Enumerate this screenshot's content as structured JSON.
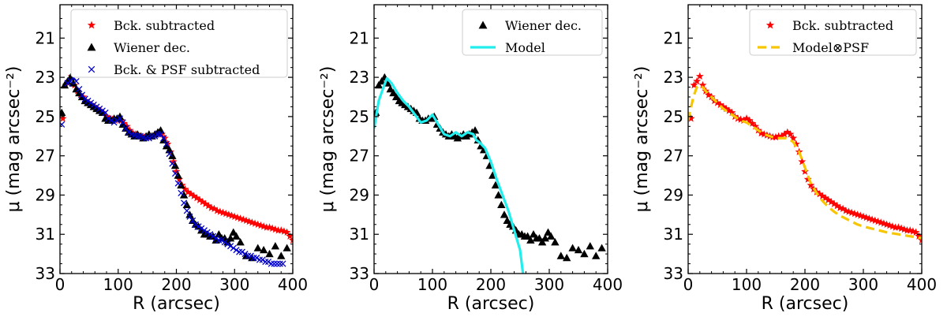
{
  "chart_data": [
    {
      "type": "scatter",
      "panel": "left",
      "xlabel": "R (arcsec)",
      "ylabel": "μ (mag arcsec⁻²)",
      "xlim": [
        0,
        400
      ],
      "ylim": [
        33,
        19.3
      ],
      "xticks": [
        0,
        100,
        200,
        300,
        400
      ],
      "yticks": [
        21,
        23,
        25,
        27,
        29,
        31,
        33
      ],
      "legend_position": "top-right",
      "series": [
        {
          "name": "Bck. subtracted",
          "marker": "star",
          "color": "#ff0000",
          "x": [
            5,
            10,
            15,
            20,
            25,
            30,
            35,
            40,
            45,
            50,
            55,
            60,
            65,
            70,
            75,
            80,
            85,
            90,
            95,
            100,
            105,
            110,
            115,
            120,
            125,
            130,
            135,
            140,
            145,
            150,
            155,
            160,
            165,
            170,
            175,
            180,
            185,
            190,
            195,
            200,
            205,
            210,
            215,
            220,
            225,
            230,
            235,
            240,
            245,
            250,
            255,
            260,
            265,
            270,
            275,
            280,
            285,
            290,
            295,
            300,
            305,
            310,
            315,
            320,
            325,
            330,
            335,
            340,
            345,
            350,
            355,
            360,
            365,
            370,
            375,
            380,
            385,
            390,
            395,
            400
          ],
          "y": [
            25.1,
            23.4,
            23.2,
            22.95,
            23.4,
            23.7,
            23.9,
            24.0,
            24.2,
            24.3,
            24.4,
            24.5,
            24.6,
            24.7,
            24.8,
            25.0,
            25.1,
            25.15,
            25.2,
            25.1,
            25.2,
            25.35,
            25.5,
            25.7,
            25.85,
            25.9,
            25.95,
            26.0,
            26.05,
            26.05,
            26.0,
            26.0,
            25.9,
            25.8,
            25.9,
            26.1,
            26.4,
            26.8,
            27.3,
            27.8,
            28.2,
            28.5,
            28.7,
            28.85,
            28.95,
            29.05,
            29.15,
            29.25,
            29.35,
            29.45,
            29.55,
            29.65,
            29.7,
            29.8,
            29.85,
            29.9,
            29.95,
            30.0,
            30.05,
            30.1,
            30.15,
            30.2,
            30.25,
            30.3,
            30.35,
            30.4,
            30.45,
            30.5,
            30.55,
            30.6,
            30.65,
            30.65,
            30.7,
            30.75,
            30.8,
            30.8,
            30.85,
            30.9,
            31.1,
            31.3
          ]
        },
        {
          "name": "Wiener dec.",
          "marker": "triangle",
          "color": "#000000",
          "x": [
            3,
            8,
            13,
            18,
            23,
            28,
            33,
            38,
            43,
            48,
            53,
            58,
            63,
            68,
            73,
            78,
            83,
            88,
            93,
            98,
            103,
            108,
            113,
            118,
            123,
            128,
            133,
            138,
            143,
            148,
            153,
            158,
            163,
            168,
            173,
            178,
            183,
            188,
            193,
            198,
            203,
            208,
            213,
            218,
            223,
            228,
            233,
            238,
            243,
            248,
            253,
            258,
            263,
            268,
            273,
            278,
            283,
            288,
            293,
            298,
            303,
            310,
            320,
            330,
            340,
            350,
            360,
            370,
            380,
            390
          ],
          "y": [
            24.8,
            23.4,
            23.2,
            23.0,
            23.3,
            23.6,
            23.8,
            24.0,
            24.2,
            24.3,
            24.4,
            24.5,
            24.6,
            24.7,
            24.8,
            25.1,
            25.2,
            25.2,
            25.1,
            25.1,
            25.0,
            25.4,
            25.6,
            25.8,
            25.9,
            26.0,
            25.9,
            26.0,
            26.1,
            26.0,
            25.9,
            26.0,
            25.9,
            25.8,
            25.7,
            26.2,
            26.5,
            26.7,
            27.0,
            27.5,
            28.0,
            28.5,
            29.0,
            29.5,
            30.0,
            30.3,
            30.5,
            30.6,
            30.8,
            31.0,
            31.0,
            31.1,
            31.1,
            31.3,
            31.0,
            31.2,
            31.2,
            31.4,
            31.2,
            30.9,
            31.1,
            31.4,
            32.1,
            32.2,
            31.7,
            31.8,
            32.0,
            31.6,
            32.1,
            31.7
          ]
        },
        {
          "name": "Bck. & PSF subtracted",
          "marker": "x",
          "color": "#0000cc",
          "x": [
            3,
            13,
            18,
            23,
            28,
            33,
            38,
            43,
            48,
            53,
            58,
            63,
            68,
            73,
            78,
            83,
            88,
            93,
            98,
            103,
            108,
            113,
            118,
            123,
            128,
            133,
            138,
            143,
            148,
            153,
            158,
            163,
            168,
            173,
            178,
            183,
            188,
            193,
            198,
            203,
            208,
            213,
            218,
            223,
            228,
            233,
            238,
            243,
            248,
            253,
            258,
            263,
            268,
            273,
            278,
            283,
            288,
            293,
            298,
            303,
            308,
            313,
            318,
            323,
            328,
            333,
            338,
            343,
            348,
            353,
            358,
            363,
            368,
            373,
            378,
            383
          ],
          "y": [
            25.4,
            23.3,
            23.2,
            23.0,
            23.2,
            23.6,
            23.9,
            24.1,
            24.2,
            24.3,
            24.4,
            24.5,
            24.6,
            24.7,
            24.8,
            25.1,
            25.2,
            25.3,
            25.2,
            25.1,
            25.3,
            25.6,
            25.8,
            25.9,
            25.95,
            26.0,
            26.0,
            26.05,
            26.1,
            26.1,
            26.0,
            26.0,
            25.9,
            25.9,
            26.1,
            26.4,
            26.9,
            27.4,
            27.9,
            28.4,
            28.9,
            29.4,
            29.8,
            30.1,
            30.3,
            30.5,
            30.6,
            30.7,
            30.8,
            30.9,
            31.0,
            31.1,
            31.2,
            31.3,
            31.3,
            31.4,
            31.5,
            31.6,
            31.7,
            31.8,
            31.9,
            31.9,
            32.0,
            32.1,
            32.1,
            32.2,
            32.2,
            32.3,
            32.3,
            32.4,
            32.4,
            32.5,
            32.5,
            32.5,
            32.5,
            32.5
          ]
        }
      ]
    },
    {
      "type": "scatter",
      "panel": "middle",
      "xlabel": "R (arcsec)",
      "ylabel": "μ (mag arcsec⁻²)",
      "xlim": [
        0,
        400
      ],
      "ylim": [
        33,
        19.3
      ],
      "xticks": [
        0,
        100,
        200,
        300,
        400
      ],
      "yticks": [
        21,
        23,
        25,
        27,
        29,
        31,
        33
      ],
      "legend_position": "top-right",
      "series": [
        {
          "name": "Wiener dec.",
          "marker": "triangle",
          "color": "#000000",
          "x": [
            3,
            8,
            13,
            18,
            23,
            28,
            33,
            38,
            43,
            48,
            53,
            58,
            63,
            68,
            73,
            78,
            83,
            88,
            93,
            98,
            103,
            108,
            113,
            118,
            123,
            128,
            133,
            138,
            143,
            148,
            153,
            158,
            163,
            168,
            173,
            178,
            183,
            188,
            193,
            198,
            203,
            208,
            213,
            218,
            223,
            228,
            233,
            238,
            243,
            248,
            253,
            258,
            263,
            268,
            273,
            278,
            283,
            288,
            293,
            298,
            303,
            310,
            320,
            330,
            340,
            350,
            360,
            370,
            380,
            390
          ],
          "y": [
            24.8,
            23.4,
            23.2,
            23.0,
            23.3,
            23.6,
            23.8,
            24.0,
            24.2,
            24.3,
            24.4,
            24.5,
            24.6,
            24.7,
            24.8,
            25.1,
            25.2,
            25.2,
            25.1,
            25.1,
            25.0,
            25.4,
            25.6,
            25.8,
            25.9,
            26.0,
            25.9,
            26.0,
            26.1,
            26.0,
            25.9,
            26.0,
            25.9,
            25.8,
            25.7,
            26.2,
            26.5,
            26.7,
            27.0,
            27.5,
            28.0,
            28.5,
            29.0,
            29.5,
            30.0,
            30.3,
            30.5,
            30.6,
            30.8,
            31.0,
            31.0,
            31.1,
            31.1,
            31.3,
            31.0,
            31.2,
            31.2,
            31.4,
            31.2,
            30.9,
            31.1,
            31.4,
            32.1,
            32.2,
            31.7,
            31.8,
            32.0,
            31.6,
            32.1,
            31.7
          ]
        },
        {
          "name": "Model",
          "style": "line",
          "color": "#22eeee",
          "x": [
            0,
            8,
            15,
            22,
            30,
            40,
            50,
            60,
            70,
            80,
            90,
            100,
            110,
            120,
            130,
            140,
            150,
            160,
            170,
            175,
            180,
            190,
            200,
            210,
            220,
            230,
            240,
            250,
            255
          ],
          "y": [
            25.6,
            24.2,
            23.6,
            23.05,
            23.3,
            23.8,
            24.2,
            24.5,
            24.9,
            25.3,
            25.2,
            24.9,
            25.4,
            25.9,
            26.0,
            25.8,
            26.0,
            25.8,
            25.9,
            26.2,
            26.3,
            26.6,
            27.3,
            28.2,
            29.0,
            29.8,
            30.8,
            31.8,
            33.0
          ]
        }
      ]
    },
    {
      "type": "scatter",
      "panel": "right",
      "xlabel": "R (arcsec)",
      "ylabel": "μ (mag arcsec⁻²)",
      "xlim": [
        0,
        400
      ],
      "ylim": [
        33,
        19.3
      ],
      "xticks": [
        0,
        100,
        200,
        300,
        400
      ],
      "yticks": [
        21,
        23,
        25,
        27,
        29,
        31,
        33
      ],
      "legend_position": "top-right",
      "series": [
        {
          "name": "Bck. subtracted",
          "marker": "star",
          "color": "#ff0000",
          "x": [
            5,
            10,
            15,
            20,
            25,
            30,
            35,
            40,
            45,
            50,
            55,
            60,
            65,
            70,
            75,
            80,
            85,
            90,
            95,
            100,
            105,
            110,
            115,
            120,
            125,
            130,
            135,
            140,
            145,
            150,
            155,
            160,
            165,
            170,
            175,
            180,
            185,
            190,
            195,
            200,
            205,
            210,
            215,
            220,
            225,
            230,
            235,
            240,
            245,
            250,
            255,
            260,
            265,
            270,
            275,
            280,
            285,
            290,
            295,
            300,
            305,
            310,
            315,
            320,
            325,
            330,
            335,
            340,
            345,
            350,
            355,
            360,
            365,
            370,
            375,
            380,
            385,
            390,
            395,
            400
          ],
          "y": [
            25.1,
            23.4,
            23.2,
            22.95,
            23.4,
            23.7,
            23.9,
            24.0,
            24.2,
            24.3,
            24.4,
            24.5,
            24.6,
            24.7,
            24.8,
            25.0,
            25.1,
            25.15,
            25.2,
            25.1,
            25.2,
            25.35,
            25.5,
            25.7,
            25.85,
            25.9,
            25.95,
            26.0,
            26.05,
            26.05,
            26.0,
            26.0,
            25.9,
            25.8,
            25.9,
            26.1,
            26.4,
            26.8,
            27.3,
            27.8,
            28.2,
            28.5,
            28.7,
            28.85,
            28.95,
            29.05,
            29.15,
            29.25,
            29.35,
            29.45,
            29.55,
            29.65,
            29.7,
            29.8,
            29.85,
            29.9,
            29.95,
            30.0,
            30.05,
            30.1,
            30.15,
            30.2,
            30.25,
            30.3,
            30.35,
            30.4,
            30.45,
            30.5,
            30.55,
            30.6,
            30.65,
            30.65,
            30.7,
            30.75,
            30.8,
            30.8,
            30.85,
            30.9,
            31.1,
            31.3
          ]
        },
        {
          "name": "Model⊗PSF",
          "style": "dashed",
          "color": "#f7c600",
          "x": [
            0,
            5,
            10,
            15,
            20,
            25,
            30,
            40,
            50,
            60,
            70,
            80,
            90,
            100,
            110,
            120,
            130,
            140,
            150,
            160,
            170,
            180,
            190,
            200,
            210,
            220,
            230,
            240,
            250,
            260,
            270,
            280,
            290,
            300,
            320,
            340,
            360,
            380,
            400
          ],
          "y": [
            25.2,
            24.5,
            23.9,
            23.5,
            23.4,
            23.5,
            23.7,
            24.0,
            24.3,
            24.6,
            24.8,
            25.0,
            25.2,
            25.3,
            25.5,
            25.7,
            25.9,
            26.0,
            26.1,
            26.1,
            26.1,
            26.3,
            26.8,
            27.6,
            28.4,
            28.9,
            29.3,
            29.6,
            29.85,
            30.05,
            30.2,
            30.35,
            30.5,
            30.6,
            30.75,
            30.9,
            31.0,
            31.1,
            31.2
          ]
        }
      ]
    }
  ]
}
